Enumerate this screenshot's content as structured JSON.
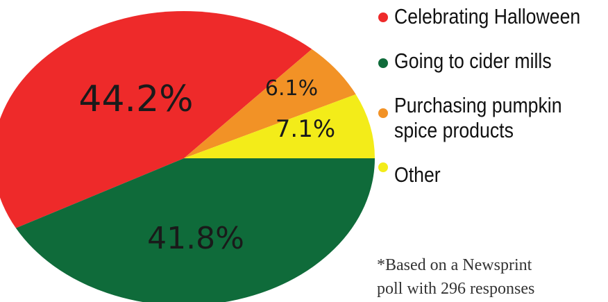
{
  "chart_data": {
    "type": "pie",
    "slices": [
      {
        "label": "Celebrating Halloween",
        "value": 44.2,
        "display": "44.2%",
        "color": "#ee2a2a"
      },
      {
        "label": "Going to cider mills",
        "value": 41.8,
        "display": "41.8%",
        "color": "#0f6b3a"
      },
      {
        "label": "Purchasing pumpkin spice products",
        "value": 6.1,
        "display": "6.1%",
        "color": "#f29226"
      },
      {
        "label": "Other",
        "value": 7.1,
        "display": "7.1%",
        "color": "#f3ec19"
      }
    ]
  },
  "legend": {
    "items": [
      {
        "label": "Celebrating Halloween",
        "color": "#ee2a2a"
      },
      {
        "label": "Going to cider mills",
        "color": "#0f6b3a"
      },
      {
        "label_line1": "Purchasing pumpkin",
        "label_line2": "spice products",
        "color": "#f29226"
      },
      {
        "label": "Other",
        "color": "#f3ec19"
      }
    ]
  },
  "footnote": {
    "line1": "*Based on a Newsprint",
    "line2": "poll with 296 responses"
  }
}
